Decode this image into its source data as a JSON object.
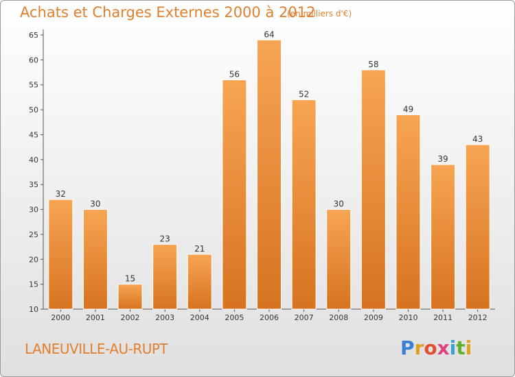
{
  "header": {
    "title": "Achats et Charges Externes 2000 à 2012",
    "unit": "(en milliers d'€)"
  },
  "footer": {
    "commune": "LANEUVILLE-AU-RUPT",
    "logo_letters": [
      "P",
      "r",
      "o",
      "x",
      "i",
      "t",
      "i"
    ],
    "logo_colors": [
      "#3a7fd5",
      "#e0a020",
      "#e05030",
      "#e04080",
      "#3a9fd5",
      "#60b030",
      "#e0a020"
    ]
  },
  "colors": {
    "bar_light": "#f7a553",
    "bar_dark": "#d7731f",
    "accent": "#e07f2e"
  },
  "chart_data": {
    "type": "bar",
    "title": "Achats et Charges Externes 2000 à 2012",
    "subtitle": "(en milliers d'€)",
    "categories": [
      "2000",
      "2001",
      "2002",
      "2003",
      "2004",
      "2005",
      "2006",
      "2007",
      "2008",
      "2009",
      "2010",
      "2011",
      "2012"
    ],
    "values": [
      32,
      30,
      15,
      23,
      21,
      56,
      64,
      52,
      30,
      58,
      49,
      39,
      43
    ],
    "ylim": [
      10,
      65
    ],
    "yticks": [
      10,
      15,
      20,
      25,
      30,
      35,
      40,
      45,
      50,
      55,
      60,
      65
    ],
    "grid": false,
    "data_labels": true
  }
}
